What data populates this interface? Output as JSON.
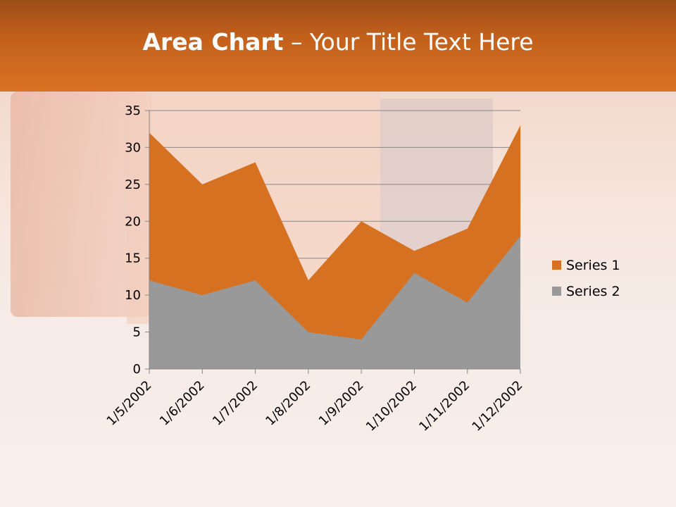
{
  "slide": {
    "title_bold": "Area Chart",
    "title_rest": " – Your Title Text Here"
  },
  "colors": {
    "series1": "#d57120",
    "series2": "#999999",
    "header": "#c8651e"
  },
  "chart_data": {
    "type": "area",
    "categories": [
      "1/5/2002",
      "1/6/2002",
      "1/7/2002",
      "1/8/2002",
      "1/9/2002",
      "1/10/2002",
      "1/11/2002",
      "1/12/2002"
    ],
    "series": [
      {
        "name": "Series 1",
        "values": [
          32,
          25,
          28,
          12,
          20,
          16,
          19,
          33
        ]
      },
      {
        "name": "Series 2",
        "values": [
          12,
          10,
          12,
          5,
          4,
          13,
          9,
          18
        ]
      }
    ],
    "ylim": [
      0,
      35
    ],
    "yticks": [
      "0",
      "5",
      "10",
      "15",
      "20",
      "25",
      "30",
      "35"
    ],
    "grid": true,
    "legend": "right"
  }
}
